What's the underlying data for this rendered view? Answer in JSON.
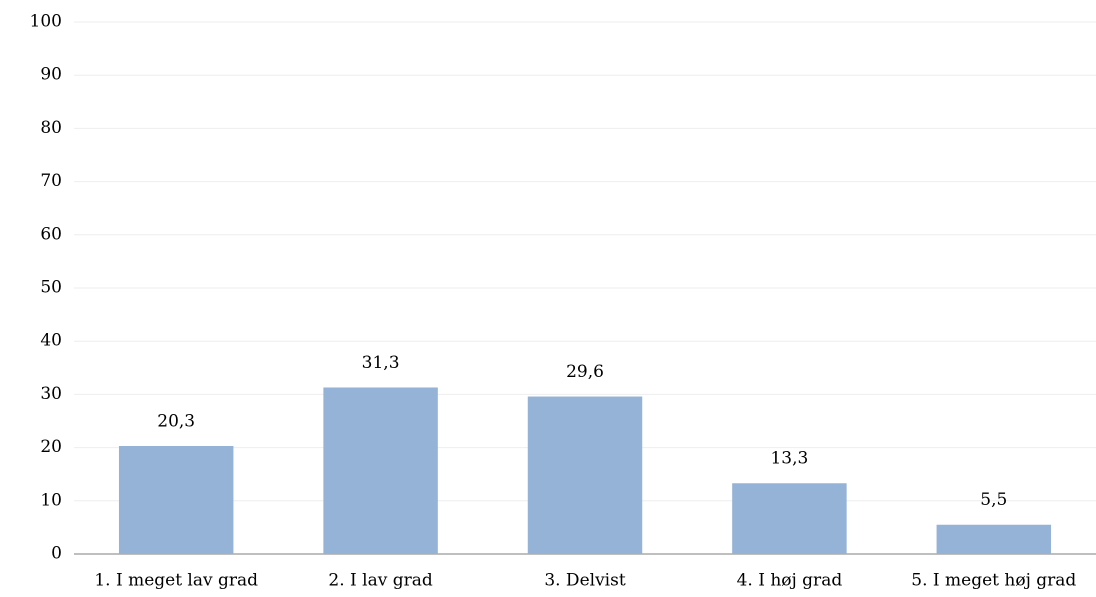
{
  "chart_data": {
    "type": "bar",
    "categories": [
      "1. I meget lav grad",
      "2. I lav grad",
      "3. Delvist",
      "4. I høj grad",
      "5. I meget høj grad"
    ],
    "values": [
      20.3,
      31.3,
      29.6,
      13.3,
      5.5
    ],
    "value_labels": [
      "20,3",
      "31,3",
      "29,6",
      "13,3",
      "5,5"
    ],
    "color": "#95b3d7",
    "ylim": [
      0,
      100
    ],
    "yticks": [
      0,
      10,
      20,
      30,
      40,
      50,
      60,
      70,
      80,
      90,
      100
    ],
    "grid": true
  }
}
